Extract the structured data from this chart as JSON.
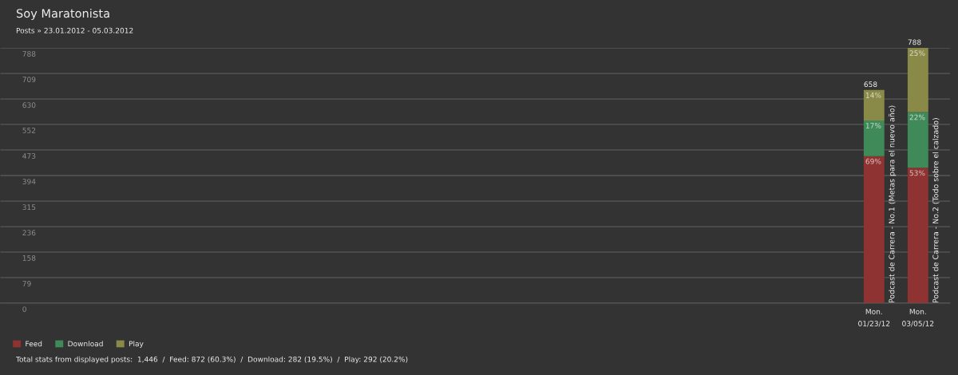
{
  "chart_data": {
    "type": "bar",
    "stacked": true,
    "title": "Soy Maratonista",
    "subtitle": "Posts » 23.01.2012 - 05.03.2012",
    "categories": [
      null,
      null,
      null,
      null,
      null,
      null,
      null,
      null,
      null,
      null,
      null,
      null,
      null,
      null,
      null,
      null,
      null,
      null,
      null,
      "Mon.\n01/23/12",
      "Mon.\n03/05/12"
    ],
    "series": [
      {
        "name": "Feed",
        "color": "#8e3232",
        "values": [
          null,
          null,
          null,
          null,
          null,
          null,
          null,
          null,
          null,
          null,
          null,
          null,
          null,
          null,
          null,
          null,
          null,
          null,
          null,
          454,
          418
        ]
      },
      {
        "name": "Download",
        "color": "#3f8a58",
        "values": [
          null,
          null,
          null,
          null,
          null,
          null,
          null,
          null,
          null,
          null,
          null,
          null,
          null,
          null,
          null,
          null,
          null,
          null,
          null,
          110,
          172
        ]
      },
      {
        "name": "Play",
        "color": "#8a8a48",
        "values": [
          null,
          null,
          null,
          null,
          null,
          null,
          null,
          null,
          null,
          null,
          null,
          null,
          null,
          null,
          null,
          null,
          null,
          null,
          null,
          94,
          198
        ]
      }
    ],
    "totals": [
      null,
      null,
      null,
      null,
      null,
      null,
      null,
      null,
      null,
      null,
      null,
      null,
      null,
      null,
      null,
      null,
      null,
      null,
      null,
      "658",
      "788"
    ],
    "ylim": [
      0,
      788
    ],
    "yticks": [
      0,
      79,
      158,
      236,
      315,
      394,
      473,
      552,
      630,
      709,
      788
    ],
    "grid": "y",
    "legend": "bottom left",
    "annotations": [
      {
        "text": "69%",
        "x": "Mon.\n01/23/12",
        "y": 454
      },
      {
        "text": "17%",
        "x": "Mon.\n01/23/12",
        "y": 564
      },
      {
        "text": "14%",
        "x": "Mon.\n01/23/12",
        "y": 658
      },
      {
        "text": "53%",
        "x": "Mon.\n03/05/12",
        "y": 418
      },
      {
        "text": "22%",
        "x": "Mon.\n03/05/12",
        "y": 590
      },
      {
        "text": "25%",
        "x": "Mon.\n03/05/12",
        "y": 788
      },
      {
        "text": "Podcast de Carrera - No.1 (Metas para el nuevo año)",
        "x": "Mon.\n01/23/12",
        "y": 0
      },
      {
        "text": "Podcast de Carrera - No.2 (Todo sobre el calzado)",
        "x": "Mon.\n03/05/12",
        "y": 0
      },
      "Total stats from displayed posts:  1,446  /  Feed: 872 (60.3%)  /  Download: 282 (19.5%)  /  Play: 292 (20.2%)"
    ]
  }
}
